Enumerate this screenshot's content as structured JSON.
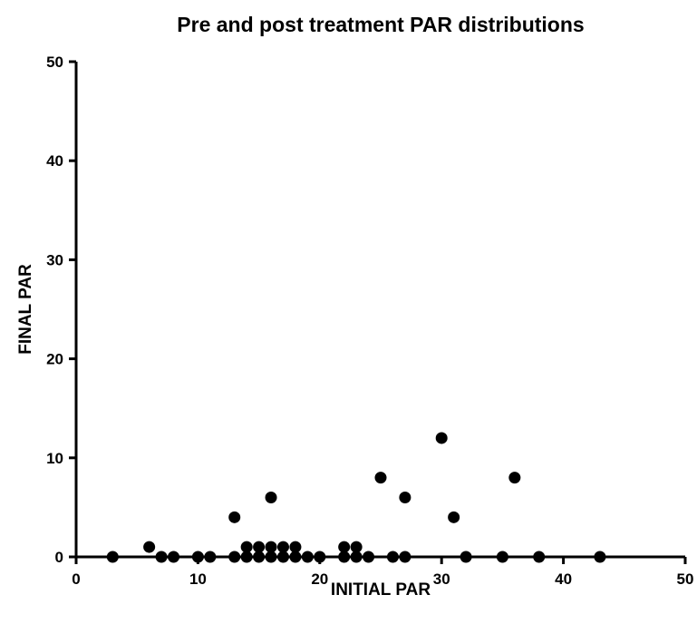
{
  "chart_data": {
    "type": "scatter",
    "title": "Pre and post treatment PAR distributions",
    "xlabel": "INITIAL PAR",
    "ylabel": "FINAL PAR",
    "xlim": [
      0,
      50
    ],
    "ylim": [
      0,
      50
    ],
    "xticks": [
      0,
      10,
      20,
      30,
      40,
      50
    ],
    "yticks": [
      0,
      10,
      20,
      30,
      40,
      50
    ],
    "grid": false,
    "legend": "none",
    "marker_color": "#000000",
    "points": [
      [
        3,
        0
      ],
      [
        6,
        1
      ],
      [
        7,
        0
      ],
      [
        8,
        0
      ],
      [
        10,
        0
      ],
      [
        11,
        0
      ],
      [
        13,
        4
      ],
      [
        13,
        0
      ],
      [
        14,
        1
      ],
      [
        14,
        0
      ],
      [
        15,
        1
      ],
      [
        15,
        0
      ],
      [
        16,
        6
      ],
      [
        16,
        1
      ],
      [
        16,
        0
      ],
      [
        17,
        1
      ],
      [
        17,
        0
      ],
      [
        18,
        1
      ],
      [
        18,
        0
      ],
      [
        19,
        0
      ],
      [
        20,
        0
      ],
      [
        22,
        1
      ],
      [
        22,
        0
      ],
      [
        23,
        1
      ],
      [
        23,
        0
      ],
      [
        24,
        0
      ],
      [
        25,
        8
      ],
      [
        26,
        0
      ],
      [
        27,
        6
      ],
      [
        27,
        0
      ],
      [
        30,
        12
      ],
      [
        31,
        4
      ],
      [
        32,
        0
      ],
      [
        35,
        0
      ],
      [
        36,
        8
      ],
      [
        38,
        0
      ],
      [
        43,
        0
      ]
    ]
  }
}
